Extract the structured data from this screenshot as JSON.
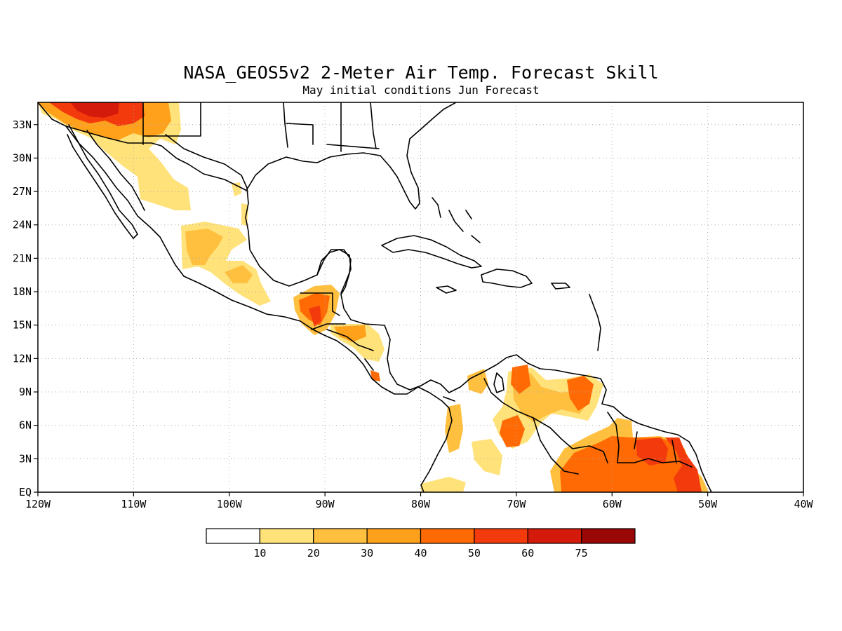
{
  "title": "NASA_GEOS5v2 2-Meter Air Temp. Forecast Skill",
  "subtitle": "May initial conditions  Jun Forecast",
  "map": {
    "region": "Central America, Gulf of Mexico, Caribbean, northern South America",
    "lon_range": [
      -120,
      -40
    ],
    "lat_range": [
      0,
      35
    ],
    "grid": "dotted",
    "x_ticks": [
      "120W",
      "110W",
      "100W",
      "90W",
      "80W",
      "70W",
      "60W",
      "50W",
      "40W"
    ],
    "y_ticks": [
      "EQ",
      "3N",
      "6N",
      "9N",
      "12N",
      "15N",
      "18N",
      "21N",
      "24N",
      "27N",
      "30N",
      "33N"
    ]
  },
  "colorbar": {
    "labels": [
      "10",
      "20",
      "30",
      "40",
      "50",
      "60",
      "75"
    ],
    "colors": [
      "#ffffff",
      "#ffe27a",
      "#ffbf3f",
      "#ffa11a",
      "#ff6a05",
      "#f23a0c",
      "#d41a0a",
      "#9a0707"
    ]
  },
  "skill_regions": [
    {
      "name": "southwest-us-maximum",
      "lon": -113,
      "lat": 34,
      "level": 5
    },
    {
      "name": "mexico-central",
      "lon": -103,
      "lat": 21,
      "level": 2
    },
    {
      "name": "guatemala-belize",
      "lon": -91,
      "lat": 16,
      "level": 5
    },
    {
      "name": "honduras-nicaragua",
      "lon": -86,
      "lat": 14,
      "level": 3
    },
    {
      "name": "venezuela",
      "lon": -66,
      "lat": 8,
      "level": 4
    },
    {
      "name": "guianas-amazon",
      "lon": -58,
      "lat": 2,
      "level": 5
    }
  ]
}
